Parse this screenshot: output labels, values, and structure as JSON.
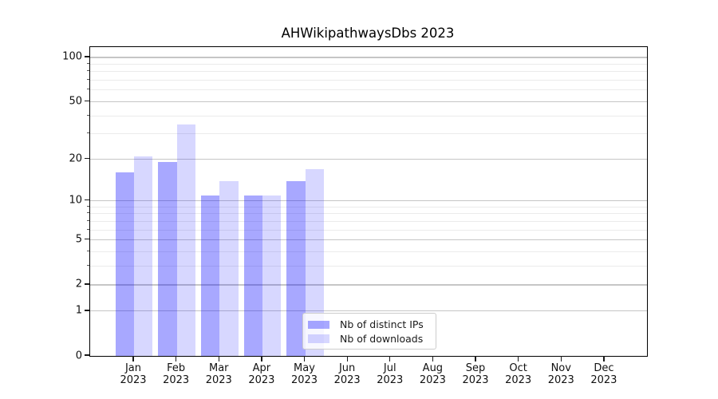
{
  "figure": {
    "background": "#ffffff",
    "frame_color": "#000000",
    "grid_major_color": "#c6c6c6",
    "grid_minor_color": "#ebebeb"
  },
  "chart_data": {
    "type": "bar",
    "title": "AHWikipathwaysDbs 2023",
    "xlabel": "",
    "ylabel": "",
    "categories": [
      "Jan 2023",
      "Feb 2023",
      "Mar 2023",
      "Apr 2023",
      "May 2023",
      "Jun 2023",
      "Jul 2023",
      "Aug 2023",
      "Sep 2023",
      "Oct 2023",
      "Nov 2023",
      "Dec 2023"
    ],
    "series": [
      {
        "name": "Nb of distinct IPs",
        "color": "rgba(0,0,255,0.34)",
        "color_hex_on_white": "#a8a8ff",
        "values": [
          16,
          19,
          11,
          11,
          14,
          0,
          0,
          0,
          0,
          0,
          0,
          0
        ]
      },
      {
        "name": "Nb of downloads",
        "color": "rgba(0,0,255,0.155)",
        "color_hex_on_white": "#d8d8ff",
        "values": [
          21,
          35,
          14,
          11,
          17,
          0,
          0,
          0,
          0,
          0,
          0,
          0
        ]
      }
    ],
    "y_scale": "log1p",
    "ylim": [
      0,
      117
    ],
    "y_major_ticks": [
      100,
      50,
      20,
      10,
      5,
      2,
      1,
      0
    ],
    "y_minor_gridlines": [
      3,
      4,
      6,
      7,
      8,
      9,
      30,
      40,
      60,
      70,
      80,
      90
    ],
    "grid": true,
    "legend_position": "lower center inside"
  }
}
